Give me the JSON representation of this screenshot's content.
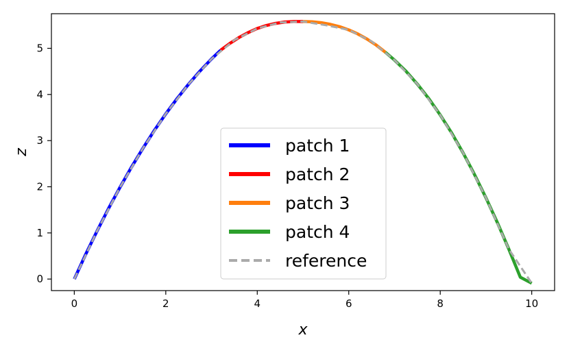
{
  "chart_data": {
    "type": "line",
    "xlabel": "x",
    "ylabel": "z",
    "xlim": [
      -0.5,
      10.5
    ],
    "ylim": [
      -0.25,
      5.75
    ],
    "xticks": [
      0,
      2,
      4,
      6,
      8,
      10
    ],
    "yticks": [
      0,
      1,
      2,
      3,
      4,
      5
    ],
    "grid": false,
    "legend_position": "lower center",
    "series": [
      {
        "name": "patch 1",
        "color": "#0000ff",
        "style": "solid",
        "x": [
          0.0,
          0.25,
          0.5,
          0.75,
          1.0,
          1.25,
          1.5,
          1.75,
          2.0,
          2.25,
          2.5,
          2.75,
          3.0,
          3.2
        ],
        "y": [
          0.0,
          0.535,
          1.045,
          1.53,
          1.99,
          2.425,
          2.835,
          3.22,
          3.58,
          3.915,
          4.225,
          4.51,
          4.77,
          4.96
        ]
      },
      {
        "name": "patch 2",
        "color": "#ff0000",
        "style": "solid",
        "x": [
          3.2,
          3.4,
          3.6,
          3.8,
          4.0,
          4.2,
          4.4,
          4.6,
          4.8,
          5.0
        ],
        "y": [
          4.96,
          5.105,
          5.235,
          5.34,
          5.43,
          5.495,
          5.54,
          5.57,
          5.58,
          5.58
        ]
      },
      {
        "name": "patch 3",
        "color": "#ff7f0e",
        "style": "solid",
        "x": [
          5.0,
          5.2,
          5.4,
          5.6,
          5.8,
          6.0,
          6.2,
          6.4,
          6.6,
          6.8
        ],
        "y": [
          5.58,
          5.575,
          5.555,
          5.52,
          5.47,
          5.4,
          5.31,
          5.2,
          5.07,
          4.915
        ]
      },
      {
        "name": "patch 4",
        "color": "#2ca02c",
        "style": "solid",
        "x": [
          6.8,
          7.0,
          7.25,
          7.5,
          7.75,
          8.0,
          8.25,
          8.5,
          8.75,
          9.0,
          9.25,
          9.5,
          9.75,
          10.0
        ],
        "y": [
          4.915,
          4.745,
          4.505,
          4.225,
          3.91,
          3.555,
          3.165,
          2.735,
          2.265,
          1.76,
          1.22,
          0.645,
          0.04,
          -0.09
        ]
      },
      {
        "name": "reference",
        "color": "#aaaaaa",
        "style": "dashed",
        "x": [
          0,
          0.5,
          1,
          1.5,
          2,
          2.5,
          3,
          3.5,
          4,
          4.5,
          5,
          5.5,
          6,
          6.5,
          7,
          7.5,
          8,
          8.5,
          9,
          9.5,
          10
        ],
        "y": [
          0.0,
          1.045,
          1.99,
          2.835,
          3.58,
          4.225,
          4.77,
          5.18,
          5.43,
          5.56,
          5.58,
          5.5,
          5.4,
          5.15,
          4.745,
          4.225,
          3.555,
          2.735,
          1.76,
          0.645,
          -0.09
        ]
      }
    ]
  }
}
